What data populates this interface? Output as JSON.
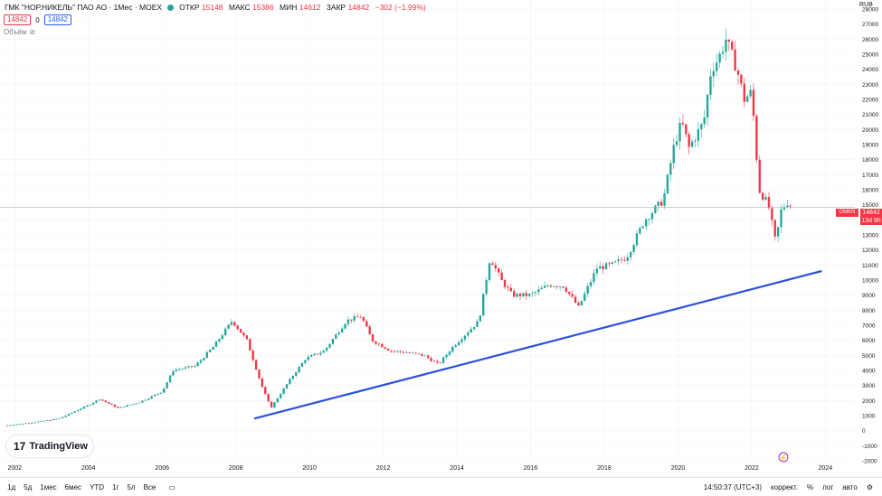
{
  "header": {
    "symbol": "ГМК \"НОР.НИКЕЛЬ\" ПАО АО · 1Мес · MOEX",
    "open_label": "ОТКР",
    "open": "15148",
    "high_label": "МАКС",
    "high": "15386",
    "low_label": "МИН",
    "low": "14612",
    "close_label": "ЗАКР",
    "close": "14842",
    "change": "−302 (−1.99%)",
    "bid": "14842",
    "spread": "0",
    "ask": "14842",
    "volume_label": "Объём"
  },
  "currency": "RUB",
  "last_price_tag": {
    "symbol": "GMKN",
    "price": "14842",
    "countdown": "13d 9h"
  },
  "logo": {
    "text": "TradingView"
  },
  "bottom_bar": {
    "ranges": [
      "1д",
      "5д",
      "1мес",
      "6мес",
      "YTD",
      "1г",
      "5л",
      "Все"
    ],
    "time": "14:50:37 (UTC+3)",
    "options": [
      "коррект.",
      "%",
      "лог",
      "авто"
    ]
  },
  "colors": {
    "up": "#26a69a",
    "down": "#f23645",
    "trendline": "#2b50e0",
    "price_line": "#b2b5be"
  },
  "chart_data": {
    "type": "candlestick",
    "y_axis": {
      "min": -2000,
      "max": 28000,
      "step": 1000,
      "position": "right"
    },
    "x_ticks": [
      "2002",
      "2004",
      "2006",
      "2008",
      "2010",
      "2012",
      "2014",
      "2016",
      "2018",
      "2020",
      "2022",
      "2024"
    ],
    "x_range": [
      2001.6,
      2024.8
    ],
    "trendline": {
      "x1": 2008.5,
      "y1": 800,
      "x2": 2023.9,
      "y2": 10600
    },
    "last_price": 14842,
    "anchors": [
      [
        2001.8,
        350
      ],
      [
        2002.5,
        550
      ],
      [
        2003.2,
        800
      ],
      [
        2004.0,
        1700
      ],
      [
        2004.3,
        2100
      ],
      [
        2004.8,
        1500
      ],
      [
        2005.4,
        1900
      ],
      [
        2006.0,
        2600
      ],
      [
        2006.3,
        4000
      ],
      [
        2006.9,
        4300
      ],
      [
        2007.4,
        5600
      ],
      [
        2007.9,
        7300
      ],
      [
        2008.3,
        6000
      ],
      [
        2008.7,
        3000
      ],
      [
        2008.95,
        1500
      ],
      [
        2009.5,
        3500
      ],
      [
        2009.9,
        4800
      ],
      [
        2010.4,
        5300
      ],
      [
        2011.0,
        7300
      ],
      [
        2011.4,
        7600
      ],
      [
        2011.7,
        6000
      ],
      [
        2012.2,
        5300
      ],
      [
        2012.6,
        5200
      ],
      [
        2013.1,
        5000
      ],
      [
        2013.5,
        4400
      ],
      [
        2013.9,
        5600
      ],
      [
        2014.6,
        7300
      ],
      [
        2014.9,
        11500
      ],
      [
        2015.2,
        10000
      ],
      [
        2015.5,
        9000
      ],
      [
        2016.0,
        9000
      ],
      [
        2016.5,
        9700
      ],
      [
        2016.9,
        9600
      ],
      [
        2017.3,
        8200
      ],
      [
        2017.8,
        10800
      ],
      [
        2018.2,
        11000
      ],
      [
        2018.6,
        11500
      ],
      [
        2019.1,
        14000
      ],
      [
        2019.6,
        15300
      ],
      [
        2019.9,
        19000
      ],
      [
        2020.1,
        20500
      ],
      [
        2020.3,
        18800
      ],
      [
        2020.7,
        20500
      ],
      [
        2020.9,
        24000
      ],
      [
        2021.1,
        24700
      ],
      [
        2021.3,
        26000
      ],
      [
        2021.6,
        24000
      ],
      [
        2021.8,
        22000
      ],
      [
        2022.0,
        22500
      ],
      [
        2022.2,
        16000
      ],
      [
        2022.45,
        15000
      ],
      [
        2022.65,
        12500
      ],
      [
        2022.8,
        14600
      ],
      [
        2022.95,
        15200
      ],
      [
        2023.1,
        14842
      ]
    ]
  }
}
